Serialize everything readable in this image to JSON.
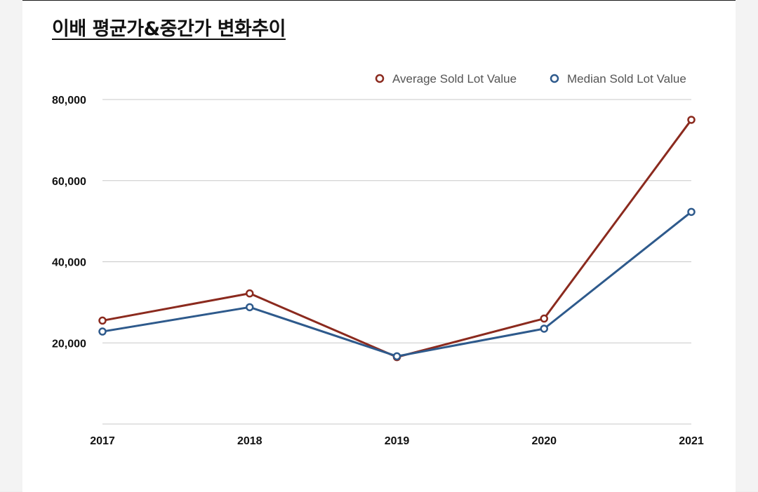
{
  "title": "이배 평균가&중간가 변화추이",
  "chart_data": {
    "type": "line",
    "title": "이배 평균가&중간가 변화추이",
    "xlabel": "",
    "ylabel": "",
    "categories": [
      "2017",
      "2018",
      "2019",
      "2020",
      "2021"
    ],
    "ylim": [
      0,
      80000
    ],
    "yticks": [
      20000,
      40000,
      60000,
      80000
    ],
    "ytick_labels": [
      "20,000",
      "40,000",
      "60,000",
      "80,000"
    ],
    "grid": true,
    "legend_position": "top-right",
    "series": [
      {
        "name": "Average Sold Lot Value",
        "color": "#8b2a1e",
        "values": [
          25500,
          32200,
          16500,
          26000,
          75000
        ]
      },
      {
        "name": "Median Sold Lot Value",
        "color": "#2e5a8c",
        "values": [
          22800,
          28800,
          16700,
          23500,
          52300
        ]
      }
    ]
  }
}
